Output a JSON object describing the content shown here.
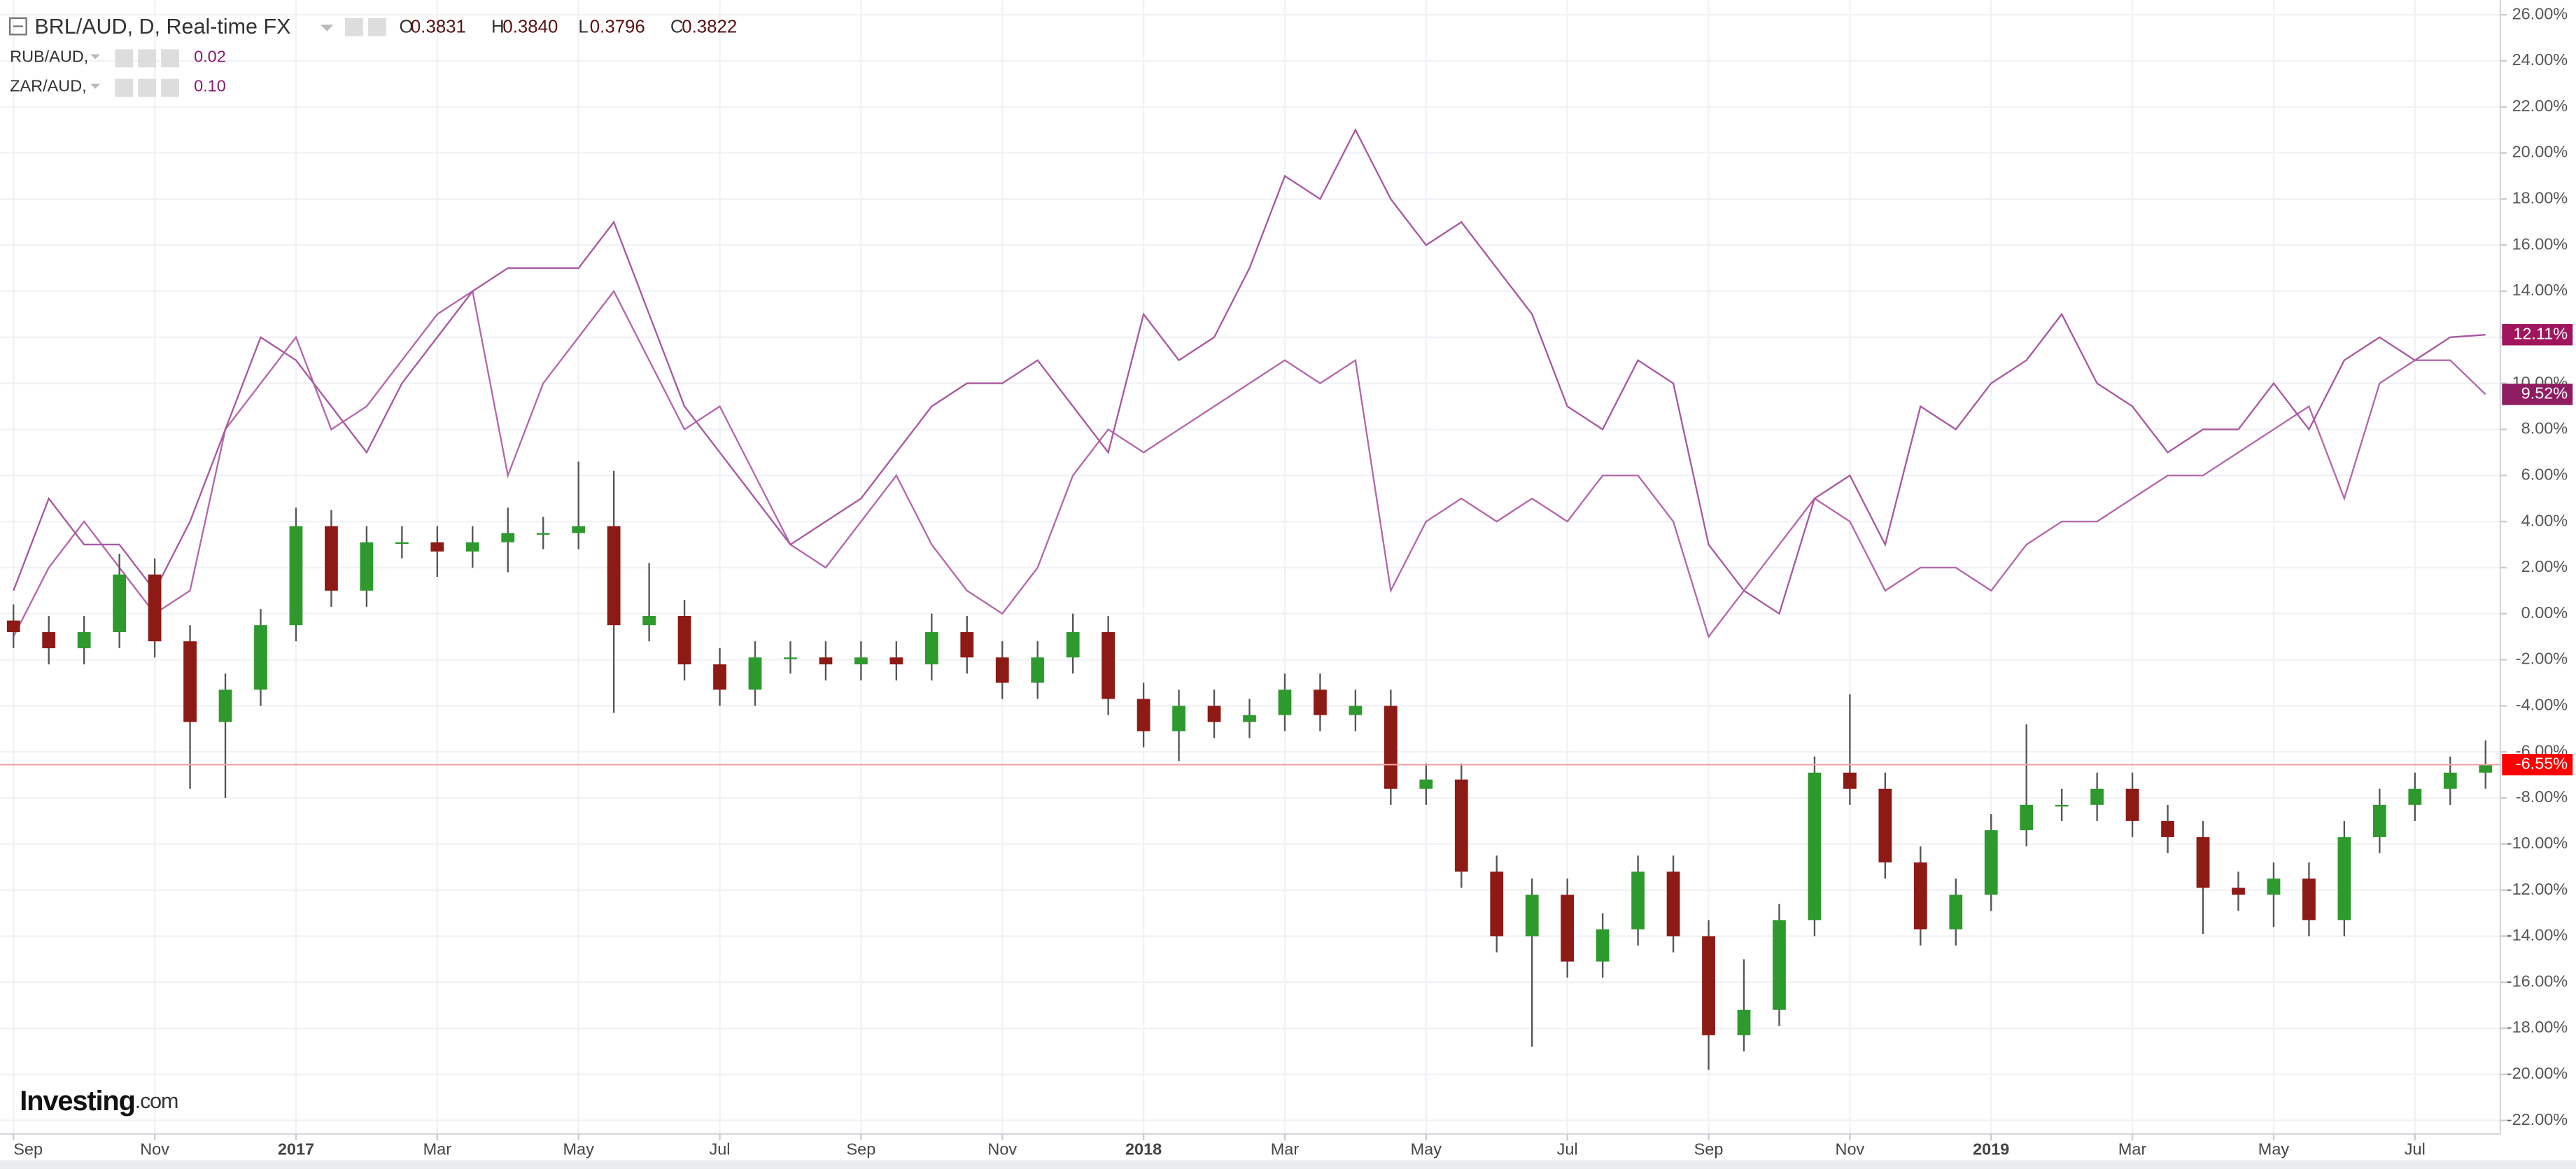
{
  "header": {
    "title": "BRL/AUD, D, Real-time FX",
    "ohlc": [
      [
        "O",
        "0.3831"
      ],
      [
        "H",
        "0.3840"
      ],
      [
        "L",
        "0.3796"
      ],
      [
        "C",
        "0.3822"
      ]
    ],
    "logo": "Investing",
    "logo_suffix": ".com"
  },
  "chart_data": {
    "type": "candlestick",
    "up_color": "#2e9a2e",
    "down_color": "#8e1a16",
    "wick_color": "#555555",
    "price_line_color": "#f4a3a3",
    "end_label_color": "#ff0000",
    "end_label": {
      "value": -6.55,
      "label": "-6.55%"
    },
    "x": [
      0,
      0.5,
      1,
      1.5,
      2,
      2.5,
      3,
      3.5,
      4,
      4.5,
      5,
      5.5,
      6,
      6.5,
      7,
      7.5,
      8,
      8.5,
      9,
      9.5,
      10,
      10.5,
      11,
      11.5,
      12,
      12.5,
      13,
      13.5,
      14,
      14.5,
      15,
      15.5,
      16,
      16.5,
      17,
      17.5,
      18,
      18.5,
      19,
      19.5,
      20,
      20.5,
      21,
      21.5,
      22,
      22.5,
      23,
      23.5,
      24,
      24.5,
      25,
      25.5,
      26,
      26.5,
      27,
      27.5,
      28,
      28.5,
      29,
      29.5,
      30,
      30.5,
      31,
      31.5,
      32,
      32.5,
      33,
      33.5,
      34,
      34.5,
      35
    ],
    "open": [
      -0.3,
      -0.8,
      -1.5,
      -0.8,
      1.7,
      -1.2,
      -4.7,
      -3.3,
      -0.5,
      3.8,
      1.0,
      3.1,
      3.1,
      2.7,
      3.1,
      3.5,
      3.5,
      3.8,
      -0.5,
      -0.1,
      -2.2,
      -3.3,
      -1.9,
      -1.9,
      -2.2,
      -1.9,
      -2.2,
      -0.8,
      -1.9,
      -3.0,
      -1.9,
      -0.8,
      -3.7,
      -5.1,
      -4.0,
      -4.7,
      -4.4,
      -3.3,
      -4.4,
      -4.0,
      -7.6,
      -7.2,
      -11.2,
      -14.0,
      -12.2,
      -15.1,
      -13.7,
      -11.2,
      -14.0,
      -18.3,
      -17.2,
      -13.3,
      -6.9,
      -7.6,
      -10.8,
      -13.7,
      -12.2,
      -9.4,
      -8.3,
      -8.3,
      -7.6,
      -9.0,
      -9.7,
      -11.9,
      -12.2,
      -11.5,
      -13.3,
      -9.7,
      -8.3,
      -7.6,
      -6.9
    ],
    "high": [
      0.4,
      -0.1,
      -0.1,
      2.6,
      2.4,
      -0.5,
      -2.6,
      0.2,
      4.6,
      4.5,
      3.8,
      3.8,
      3.8,
      3.8,
      4.6,
      4.2,
      6.6,
      6.2,
      2.2,
      0.6,
      -1.5,
      -1.2,
      -1.2,
      -1.2,
      -1.2,
      -1.2,
      0.0,
      -0.1,
      -1.2,
      -1.2,
      0.0,
      -0.1,
      -3.0,
      -3.3,
      -3.3,
      -3.7,
      -2.6,
      -2.6,
      -3.3,
      -3.3,
      -6.5,
      -6.5,
      -10.5,
      -11.5,
      -11.5,
      -13.0,
      -10.5,
      -10.5,
      -13.3,
      -15.0,
      -12.6,
      -6.2,
      -3.5,
      -6.9,
      -10.1,
      -11.5,
      -8.7,
      -4.8,
      -7.6,
      -6.9,
      -6.9,
      -8.3,
      -9.0,
      -11.2,
      -10.8,
      -10.8,
      -9.0,
      -7.6,
      -6.9,
      -6.2,
      -5.5
    ],
    "low": [
      -1.5,
      -2.2,
      -2.2,
      -1.5,
      -1.9,
      -7.6,
      -8.0,
      -4.0,
      -1.2,
      0.3,
      0.3,
      2.4,
      1.6,
      2.0,
      1.8,
      2.8,
      2.8,
      -4.3,
      -1.2,
      -2.9,
      -4.0,
      -4.0,
      -2.6,
      -2.9,
      -2.9,
      -2.9,
      -2.9,
      -2.6,
      -3.7,
      -3.7,
      -2.6,
      -4.4,
      -5.8,
      -6.4,
      -5.4,
      -5.4,
      -5.1,
      -5.1,
      -5.1,
      -8.3,
      -8.3,
      -11.9,
      -14.7,
      -18.8,
      -15.8,
      -15.8,
      -14.4,
      -14.7,
      -19.8,
      -19.0,
      -17.9,
      -14.0,
      -8.3,
      -11.5,
      -14.4,
      -14.4,
      -12.9,
      -10.1,
      -9.0,
      -9.0,
      -9.7,
      -10.4,
      -13.9,
      -12.9,
      -13.6,
      -14.0,
      -14.0,
      -10.4,
      -9.0,
      -8.3,
      -7.6
    ],
    "close": [
      -0.8,
      -1.5,
      -0.8,
      1.7,
      -1.2,
      -4.7,
      -3.3,
      -0.5,
      3.8,
      1.0,
      3.1,
      3.1,
      2.7,
      3.1,
      3.5,
      3.5,
      3.8,
      -0.5,
      -0.1,
      -2.2,
      -3.3,
      -1.9,
      -1.9,
      -2.2,
      -1.9,
      -2.2,
      -0.8,
      -1.9,
      -3.0,
      -1.9,
      -0.8,
      -3.7,
      -5.1,
      -4.0,
      -4.7,
      -4.4,
      -3.3,
      -4.4,
      -4.0,
      -7.6,
      -7.2,
      -11.2,
      -14.0,
      -12.2,
      -15.1,
      -13.7,
      -11.2,
      -14.0,
      -18.3,
      -17.2,
      -13.3,
      -6.9,
      -7.6,
      -10.8,
      -13.7,
      -12.2,
      -9.4,
      -8.3,
      -8.3,
      -7.6,
      -9.0,
      -9.7,
      -11.9,
      -12.2,
      -11.5,
      -13.3,
      -9.7,
      -8.3,
      -7.6,
      -6.9,
      -6.55
    ],
    "series": [
      {
        "name": "RUB/AUD,",
        "legend_value": "0.02",
        "color": "#b468aa",
        "label_color": "#8e1d62",
        "end_label": {
          "value": 9.52,
          "label": "9.52%"
        },
        "values": [
          -1,
          2,
          4,
          2,
          0,
          1,
          8,
          10,
          12,
          8,
          9,
          11,
          13,
          14,
          6,
          10,
          12,
          14,
          11,
          8,
          9,
          6,
          3,
          2,
          4,
          6,
          3,
          1,
          0,
          2,
          6,
          8,
          7,
          8,
          9,
          10,
          11,
          10,
          11,
          1,
          4,
          5,
          4,
          5,
          4,
          6,
          6,
          4,
          -1,
          1,
          3,
          5,
          4,
          1,
          2,
          2,
          1,
          3,
          4,
          4,
          5,
          6,
          6,
          7,
          8,
          9,
          5,
          10,
          11,
          11,
          9.52
        ]
      },
      {
        "name": "ZAR/AUD,",
        "legend_value": "0.10",
        "color": "#a85aa0",
        "label_color": "#a0155e",
        "end_label": {
          "value": 12.11,
          "label": "12.11%"
        },
        "values": [
          1,
          5,
          3,
          3,
          1,
          4,
          8,
          12,
          11,
          9,
          7,
          10,
          12,
          14,
          15,
          15,
          15,
          17,
          13,
          9,
          7,
          5,
          3,
          4,
          5,
          7,
          9,
          10,
          10,
          11,
          9,
          7,
          13,
          11,
          12,
          15,
          19,
          18,
          21,
          18,
          16,
          17,
          15,
          13,
          9,
          8,
          11,
          10,
          3,
          1,
          0,
          5,
          6,
          3,
          9,
          8,
          10,
          11,
          13,
          10,
          9,
          7,
          8,
          8,
          10,
          8,
          11,
          12,
          11,
          12,
          12.11
        ]
      }
    ],
    "xlim": [
      -0.19,
      35.21
    ],
    "xticks": [
      {
        "value": 0,
        "label": "Sep"
      },
      {
        "value": 2,
        "label": "Nov"
      },
      {
        "value": 4,
        "label": "2017"
      },
      {
        "value": 6,
        "label": "Mar"
      },
      {
        "value": 8,
        "label": "May"
      },
      {
        "value": 10,
        "label": "Jul"
      },
      {
        "value": 12,
        "label": "Sep"
      },
      {
        "value": 14,
        "label": "Nov"
      },
      {
        "value": 16,
        "label": "2018"
      },
      {
        "value": 18,
        "label": "Mar"
      },
      {
        "value": 20,
        "label": "May"
      },
      {
        "value": 22,
        "label": "Jul"
      },
      {
        "value": 24,
        "label": "Sep"
      },
      {
        "value": 26,
        "label": "Nov"
      },
      {
        "value": 28,
        "label": "2019"
      },
      {
        "value": 30,
        "label": "Mar"
      },
      {
        "value": 32,
        "label": "May"
      },
      {
        "value": 34,
        "label": "Jul"
      }
    ],
    "ylim": [
      -22.58,
      26.64
    ],
    "yticks": [
      {
        "value": 26,
        "label": "26.00%"
      },
      {
        "value": 24,
        "label": "24.00%"
      },
      {
        "value": 22,
        "label": "22.00%"
      },
      {
        "value": 20,
        "label": "20.00%"
      },
      {
        "value": 18,
        "label": "18.00%"
      },
      {
        "value": 16,
        "label": "16.00%"
      },
      {
        "value": 14,
        "label": "14.00%"
      },
      {
        "value": 12,
        "label": "12.00%"
      },
      {
        "value": 10,
        "label": "10.00%"
      },
      {
        "value": 8,
        "label": "8.00%"
      },
      {
        "value": 6,
        "label": "6.00%"
      },
      {
        "value": 4,
        "label": "4.00%"
      },
      {
        "value": 2,
        "label": "2.00%"
      },
      {
        "value": 0,
        "label": "0.00%"
      },
      {
        "value": -2,
        "label": "-2.00%"
      },
      {
        "value": -4,
        "label": "-4.00%"
      },
      {
        "value": -6,
        "label": "-6.00%"
      },
      {
        "value": -8,
        "label": "-8.00%"
      },
      {
        "value": -10,
        "label": "-10.00%"
      },
      {
        "value": -12,
        "label": "-12.00%"
      },
      {
        "value": -14,
        "label": "-14.00%"
      },
      {
        "value": -16,
        "label": "-16.00%"
      },
      {
        "value": -18,
        "label": "-18.00%"
      },
      {
        "value": -20,
        "label": "-20.00%"
      },
      {
        "value": -22,
        "label": "-22.00%"
      }
    ],
    "grid": true
  }
}
